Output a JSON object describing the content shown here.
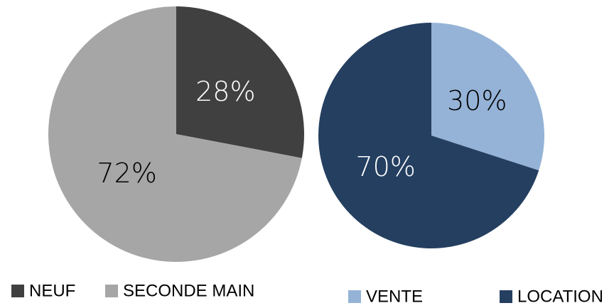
{
  "chart_data": [
    {
      "type": "pie",
      "categories": [
        "NEUF",
        "SECONDE MAIN"
      ],
      "values": [
        28,
        72
      ],
      "value_labels": [
        "28%",
        "72%"
      ],
      "colors": [
        "#404040",
        "#a6a6a6"
      ]
    },
    {
      "type": "pie",
      "categories": [
        "VENTE",
        "LOCATION"
      ],
      "values": [
        30,
        70
      ],
      "value_labels": [
        "30%",
        "70%"
      ],
      "colors": [
        "#95b3d7",
        "#243f60"
      ]
    }
  ]
}
